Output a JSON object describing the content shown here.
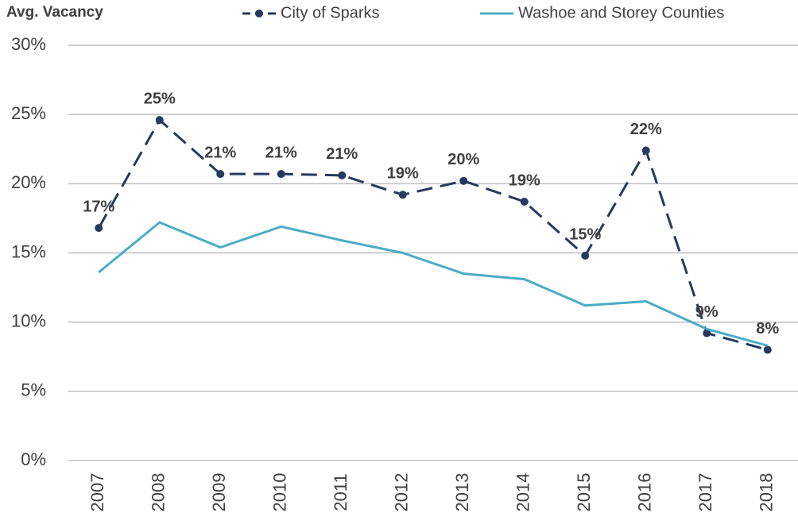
{
  "chart_data": {
    "type": "line",
    "title": "Avg. Vacancy",
    "categories": [
      "2007",
      "2008",
      "2009",
      "2010",
      "2011",
      "2012",
      "2013",
      "2014",
      "2015",
      "2016",
      "2017",
      "2018"
    ],
    "series": [
      {
        "name": "City of Sparks",
        "color": "#243a5e",
        "dashed": true,
        "markers": true,
        "values": [
          16.8,
          24.6,
          20.7,
          20.7,
          20.6,
          19.2,
          20.2,
          18.7,
          14.8,
          22.4,
          9.2,
          8.0
        ],
        "value_labels": [
          "17%",
          "25%",
          "21%",
          "21%",
          "21%",
          "19%",
          "20%",
          "19%",
          "15%",
          "22%",
          "9%",
          "8%"
        ]
      },
      {
        "name": "Washoe and Storey Counties",
        "color": "#4bacc6",
        "dashed": false,
        "markers": false,
        "values": [
          13.6,
          17.2,
          15.4,
          16.9,
          15.9,
          15.0,
          13.5,
          13.1,
          11.2,
          11.5,
          9.5,
          8.3
        ]
      }
    ],
    "ylim": [
      0,
      30
    ],
    "yticks": [
      {
        "value": 0,
        "label": "0%"
      },
      {
        "value": 5,
        "label": "5%"
      },
      {
        "value": 10,
        "label": "10%"
      },
      {
        "value": 15,
        "label": "15%"
      },
      {
        "value": 20,
        "label": "20%"
      },
      {
        "value": 25,
        "label": "25%"
      },
      {
        "value": 30,
        "label": "30%"
      }
    ],
    "grid": true
  }
}
